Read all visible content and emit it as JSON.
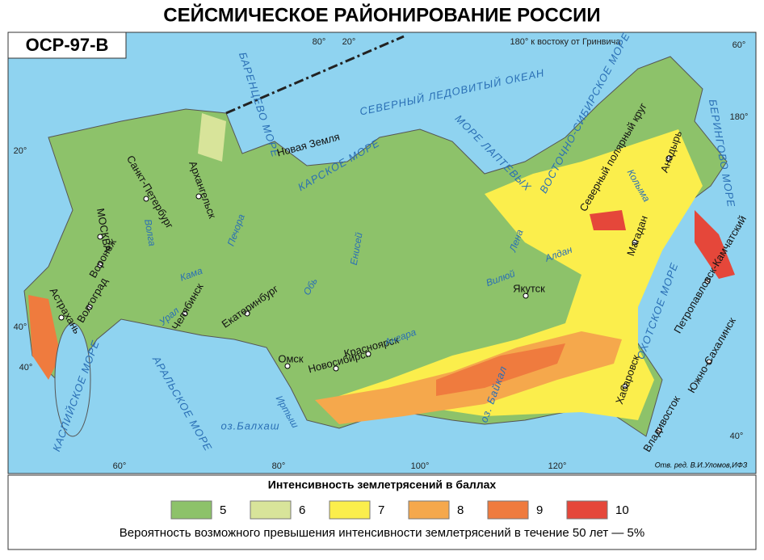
{
  "header": {
    "title": "СЕЙСМИЧЕСКОЕ РАЙОНИРОВАНИЕ РОССИИ",
    "badge": "ОСР-97-В"
  },
  "map": {
    "meridian_note": "180° к востоку от Гринвича",
    "degrees": [
      "80°",
      "20°",
      "60°",
      "20°",
      "180°",
      "40°",
      "40°",
      "60°",
      "80°",
      "100°",
      "120°",
      "40°"
    ],
    "seas": [
      "СЕВЕРНЫЙ ЛЕДОВИТЫЙ ОКЕАН",
      "БАРЕНЦЕВО МОРЕ",
      "КАРСКОЕ МОРЕ",
      "МОРЕ ЛАПТЕВЫХ",
      "ВОСТОЧНО-СИБИРСКОЕ МОРЕ",
      "БЕРИНГОВО МОРЕ",
      "ОХОТСКОЕ МОРЕ",
      "КАСПИЙСКОЕ МОРЕ",
      "АРАЛЬСКОЕ МОРЕ",
      "оз.Балхаш",
      "оз. Байкал"
    ],
    "cities": [
      "Санкт-Петербург",
      "Архангельск",
      "МОСКВА",
      "Воронеж",
      "Волгоград",
      "Астрахань",
      "Челябинск",
      "Екатеринбург",
      "Омск",
      "Новосибирск",
      "Красноярск",
      "Якутск",
      "Магадан",
      "Анадырь",
      "Петропавловск-Камчатский",
      "Южно-Сахалинск",
      "Хабаровск",
      "Владивосток"
    ],
    "places": [
      "Новая Земля",
      "Северный полярный круг"
    ],
    "rivers": [
      "Волга",
      "Кама",
      "Урал",
      "Печора",
      "Обь",
      "Енисей",
      "Иртыш",
      "Ангара",
      "Лена",
      "Вилюй",
      "Алдан",
      "Колыма"
    ],
    "credit": "Отв. ред. В.И.Уломов,ИФЗ"
  },
  "legend": {
    "title": "Интенсивность землетрясений в баллах",
    "items": [
      {
        "label": "5",
        "color": "#8dc26a"
      },
      {
        "label": "6",
        "color": "#d8e49a"
      },
      {
        "label": "7",
        "color": "#fbee4c"
      },
      {
        "label": "8",
        "color": "#f5a84c"
      },
      {
        "label": "9",
        "color": "#ef7b3e"
      },
      {
        "label": "10",
        "color": "#e5473a"
      }
    ],
    "footnote": "Вероятность возможного превышения интенсивности землетрясений в течение 50 лет — 5%"
  }
}
